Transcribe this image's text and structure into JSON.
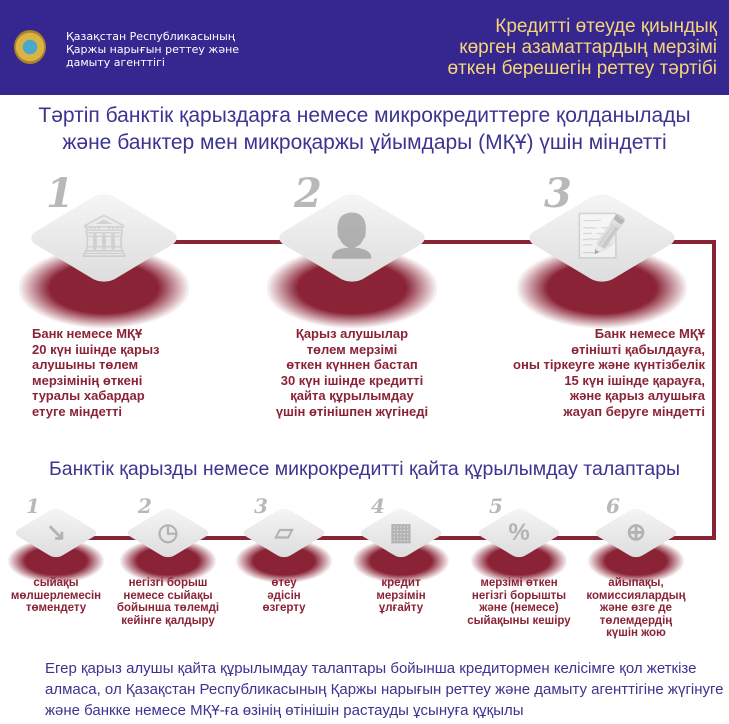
{
  "header": {
    "org_lines": [
      "Қазақстан Республикасының",
      "Қаржы нарығын реттеу және",
      "дамыту агенттігі"
    ],
    "title_lines": [
      "Кредитті өтеуде қиындық",
      "көрген азаматтардың мерзімі",
      "өткен берешегін реттеу тәртібі"
    ]
  },
  "subtitle_lines": [
    "Тәртіп банктік қарыздарға немесе микрокредиттерге қолданылады",
    "және банктер мен микроқаржы ұйымдары (МҚҰ) үшін міндетті"
  ],
  "steps": [
    {
      "num": "1",
      "icon": "bank-icon",
      "text": "Банк немесе МҚҰ\n20 күн ішінде қарыз\nалушыны төлем\nмерзімінің өткені\nтуралы хабардар\nетуге міндетті"
    },
    {
      "num": "2",
      "icon": "person-icon",
      "text": "Қарыз алушылар\nтөлем мерзімі\nөткен күннен бастап\n30 күн ішінде кредитті\nқайта құрылымдау\nүшін өтінішпен жүгінеді"
    },
    {
      "num": "3",
      "icon": "document-sign-icon",
      "text": "Банк немесе МҚҰ\nөтінішті қабылдауға,\nоны тіркеуге және күнтізбелік\n15 күн ішінде қарауға,\nжәне қарыз алушыға\nжауап беруге міндетті"
    }
  ],
  "requirements_title": "Банктік қарызды немесе микрокредитті қайта құрылымдау талаптары",
  "requirements": [
    {
      "num": "1",
      "icon": "rate-down-icon",
      "glyph": "↘",
      "text": "сыйақы\nмөлшерлемесін\nтөмендету"
    },
    {
      "num": "2",
      "icon": "clock-coins-icon",
      "glyph": "◷",
      "text": "негізгі борыш\nнемесе сыйақы\nбойынша төлемді\nкейінге қалдыру"
    },
    {
      "num": "3",
      "icon": "folder-icon",
      "glyph": "▱",
      "text": "өтеу\nәдісін\nөзгерту"
    },
    {
      "num": "4",
      "icon": "calendar-icon",
      "glyph": "▦",
      "text": "кредит\nмерзімін\nұлғайту"
    },
    {
      "num": "5",
      "icon": "percent-icon",
      "glyph": "%",
      "text": "мерзімі өткен\nнегізгі борышты\nжәне (немесе)\nсыйақыны кешіру"
    },
    {
      "num": "6",
      "icon": "plus-circle-icon",
      "glyph": "⊕",
      "text": "айыпақы,\nкомиссиялардың\nжәне өзге де\nтөлемдердің\nкүшін жою"
    }
  ],
  "footer": "Егер қарыз алушы қайта құрылымдау талаптары бойынша кредитормен келісімге қол жеткізе алмаса, ол Қазақстан Республикасының Қаржы нарығын реттеу және дамыту агенттігіне жүгінуге және банкке немесе МҚҰ-ға өзінің өтінішін растауды ұсынуға құқылы",
  "colors": {
    "header_bg": "#35278f",
    "title_gold": "#f4d57b",
    "accent": "#8a2336",
    "heading": "#3b3491"
  }
}
